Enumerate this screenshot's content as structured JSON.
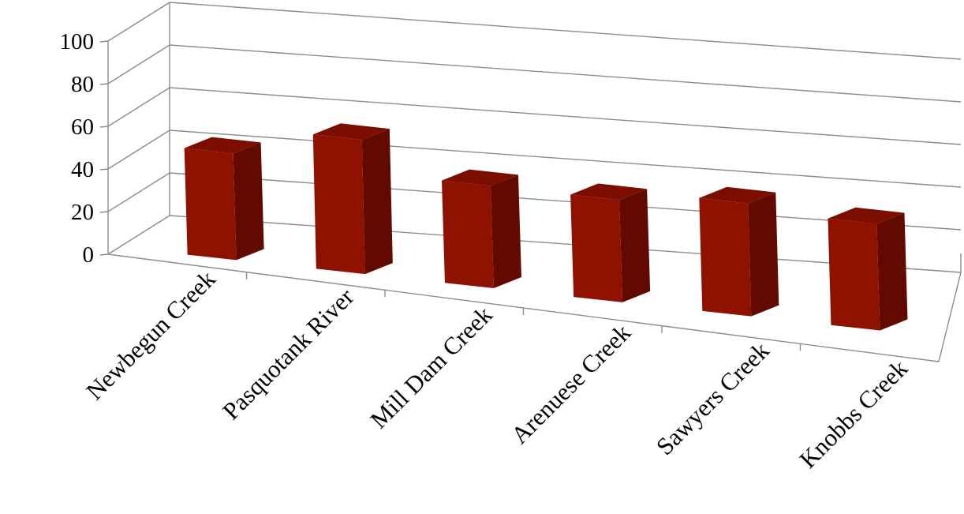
{
  "chart_data": {
    "type": "bar",
    "style": "3d-column",
    "categories": [
      "Newbegun Creek",
      "Pasquotank River",
      "Mill Dam Creek",
      "Arenuese Creek",
      "Sawyers Creek",
      "Knobbs Creek"
    ],
    "series": [
      {
        "values": [
          50,
          63,
          48,
          48,
          53,
          50
        ]
      }
    ],
    "ylim": [
      0,
      100
    ],
    "yticks": [
      "0",
      "20",
      "40",
      "60",
      "80",
      "100"
    ],
    "grid": true,
    "legend": "none",
    "colors": {
      "bar_front": "#8f1200",
      "bar_side": "#620a00",
      "bar_top": "#7c0e00",
      "grid": "#8c8c8c"
    }
  }
}
